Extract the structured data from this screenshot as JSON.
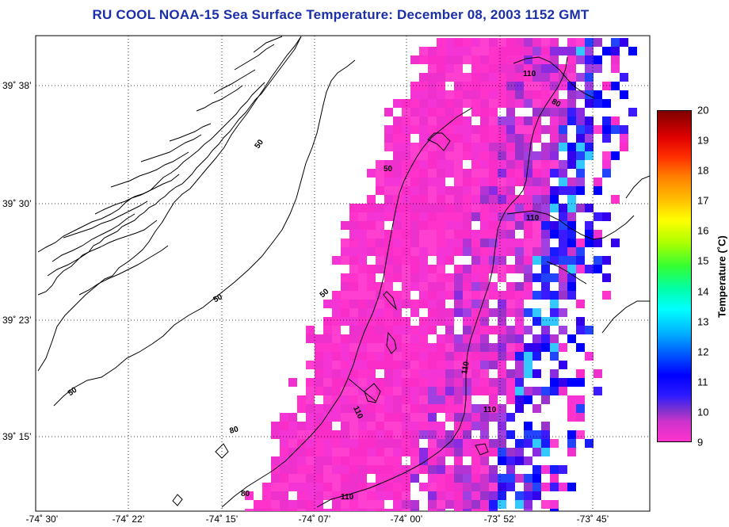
{
  "title": "RU COOL  NOAA-15  Sea Surface Temperature:  December 08, 2003 1152 GMT",
  "latitude_labels": [
    "39˚ 38’",
    "39˚ 30’",
    "39˚ 23’",
    "39˚ 15’"
  ],
  "longitude_labels": [
    "-74˚ 30’",
    "-74˚ 22’",
    "-74˚ 15’",
    "-74˚ 07’",
    "-74˚ 00’",
    "-73˚ 52’",
    "-73˚ 45’"
  ],
  "colorbar": {
    "title": "Temperature (˚C)",
    "ticks": [
      "20",
      "19",
      "18",
      "17",
      "16",
      "15",
      "14",
      "13",
      "12",
      "11",
      "10",
      "9"
    ],
    "min": 9,
    "max": 20
  },
  "contour_labels": [
    "50",
    "50",
    "50",
    "50",
    "50",
    "80",
    "80",
    "80",
    "110",
    "110",
    "110",
    "110",
    "110",
    "110"
  ],
  "colors": {
    "title": "#1a2fa8",
    "sst_pink": "#ff33cc",
    "sst_violet": "#9933cc",
    "sst_blue": "#1a1aff",
    "sst_cyan": "#33c8ff"
  }
}
